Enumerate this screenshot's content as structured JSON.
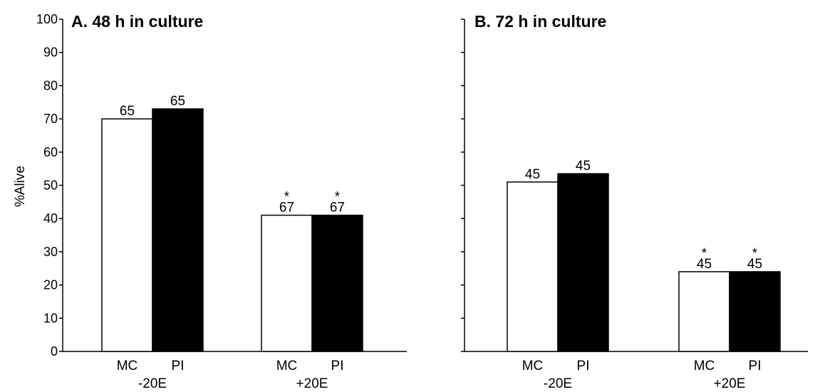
{
  "chart_data": {
    "type": "bar",
    "ylabel": "%Alive",
    "ylim": [
      0,
      100
    ],
    "yticks": [
      "0",
      "10",
      "20",
      "30",
      "40",
      "50",
      "60",
      "70",
      "80",
      "90",
      "100"
    ],
    "series_names": [
      "MC",
      "PI"
    ],
    "colors": {
      "MC": "#ffffff",
      "PI": "#000000",
      "axis": "#000000"
    },
    "panels": [
      {
        "title": "A. 48 h in culture",
        "groups": [
          {
            "label": "-20E",
            "bars": [
              {
                "series": "MC",
                "value": 70,
                "n": "65",
                "star": ""
              },
              {
                "series": "PI",
                "value": 73,
                "n": "65",
                "star": ""
              }
            ]
          },
          {
            "label": "+20E",
            "bars": [
              {
                "series": "MC",
                "value": 41,
                "n": "67",
                "star": "*"
              },
              {
                "series": "PI",
                "value": 41,
                "n": "67",
                "star": "*"
              }
            ]
          }
        ]
      },
      {
        "title": "B. 72 h in culture",
        "groups": [
          {
            "label": "-20E",
            "bars": [
              {
                "series": "MC",
                "value": 51,
                "n": "45",
                "star": ""
              },
              {
                "series": "PI",
                "value": 53.5,
                "n": "45",
                "star": ""
              }
            ]
          },
          {
            "label": "+20E",
            "bars": [
              {
                "series": "MC",
                "value": 24,
                "n": "45",
                "star": "*"
              },
              {
                "series": "PI",
                "value": 24,
                "n": "45",
                "star": "*"
              }
            ]
          }
        ]
      }
    ]
  }
}
